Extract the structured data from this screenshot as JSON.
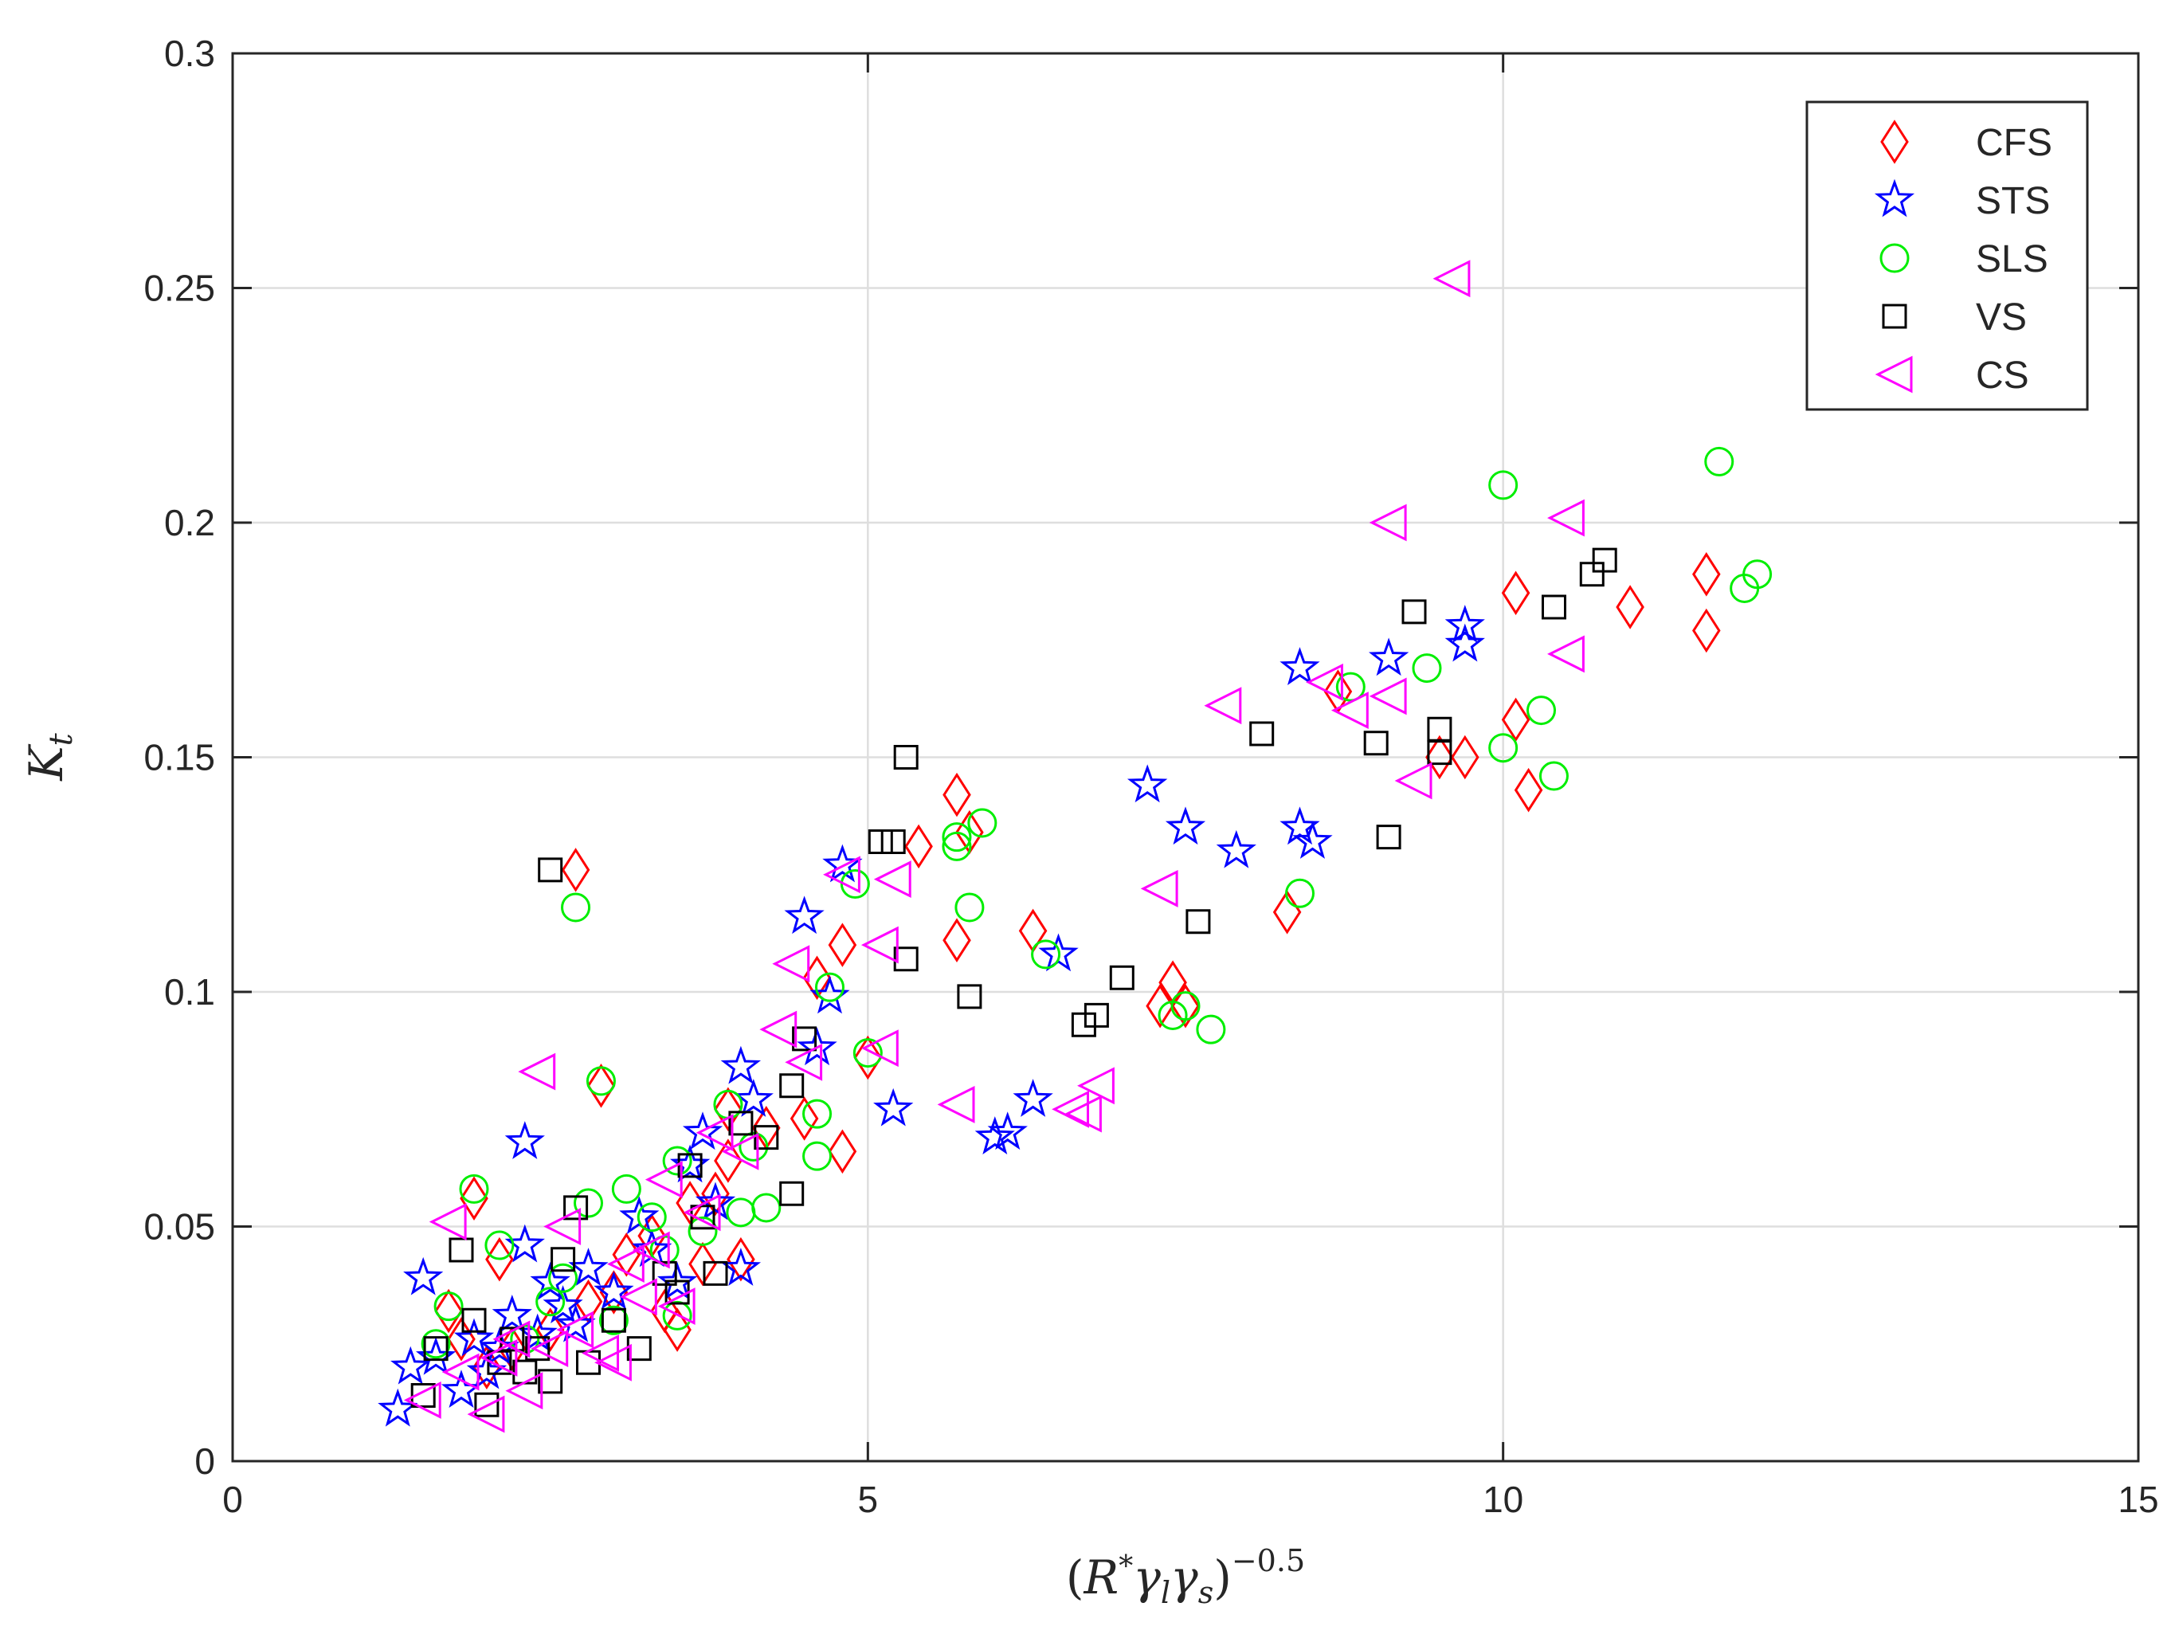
{
  "chart_data": {
    "type": "scatter",
    "xlabel": "(R*γlγs)−0.5",
    "ylabel": "Kt",
    "xlim": [
      0,
      15
    ],
    "ylim": [
      0,
      0.3
    ],
    "x_ticks": [
      "0",
      "5",
      "10",
      "15"
    ],
    "y_ticks": [
      "0",
      "0.05",
      "0.1",
      "0.15",
      "0.2",
      "0.25",
      "0.3"
    ],
    "grid": true,
    "legend_position": "top-right",
    "series": [
      {
        "name": "CFS",
        "marker": "diamond",
        "color": "#ff0000",
        "points": [
          [
            2.7,
            0.126
          ],
          [
            2.9,
            0.08
          ],
          [
            1.9,
            0.056
          ],
          [
            2.1,
            0.043
          ],
          [
            1.7,
            0.032
          ],
          [
            1.8,
            0.026
          ],
          [
            2.0,
            0.02
          ],
          [
            2.2,
            0.024
          ],
          [
            2.5,
            0.028
          ],
          [
            2.8,
            0.034
          ],
          [
            3.0,
            0.036
          ],
          [
            3.1,
            0.044
          ],
          [
            3.3,
            0.048
          ],
          [
            3.4,
            0.032
          ],
          [
            3.5,
            0.028
          ],
          [
            3.6,
            0.055
          ],
          [
            3.7,
            0.042
          ],
          [
            3.8,
            0.057
          ],
          [
            3.9,
            0.064
          ],
          [
            3.9,
            0.075
          ],
          [
            4.0,
            0.043
          ],
          [
            4.2,
            0.071
          ],
          [
            4.5,
            0.073
          ],
          [
            4.6,
            0.103
          ],
          [
            4.8,
            0.066
          ],
          [
            4.8,
            0.11
          ],
          [
            5.0,
            0.086
          ],
          [
            5.4,
            0.131
          ],
          [
            5.7,
            0.142
          ],
          [
            5.7,
            0.111
          ],
          [
            5.8,
            0.134
          ],
          [
            6.3,
            0.113
          ],
          [
            7.3,
            0.097
          ],
          [
            7.4,
            0.102
          ],
          [
            7.5,
            0.097
          ],
          [
            8.3,
            0.117
          ],
          [
            8.7,
            0.164
          ],
          [
            9.5,
            0.15
          ],
          [
            9.7,
            0.15
          ],
          [
            10.1,
            0.185
          ],
          [
            10.1,
            0.158
          ],
          [
            10.2,
            0.143
          ],
          [
            11.0,
            0.182
          ],
          [
            11.6,
            0.177
          ],
          [
            11.6,
            0.189
          ]
        ]
      },
      {
        "name": "STS",
        "marker": "star",
        "color": "#0000ff",
        "points": [
          [
            1.3,
            0.011
          ],
          [
            1.4,
            0.02
          ],
          [
            1.5,
            0.039
          ],
          [
            1.6,
            0.022
          ],
          [
            1.8,
            0.015
          ],
          [
            1.9,
            0.026
          ],
          [
            2.0,
            0.019
          ],
          [
            2.1,
            0.024
          ],
          [
            2.2,
            0.031
          ],
          [
            2.3,
            0.068
          ],
          [
            2.3,
            0.046
          ],
          [
            2.4,
            0.027
          ],
          [
            2.5,
            0.038
          ],
          [
            2.6,
            0.033
          ],
          [
            2.7,
            0.029
          ],
          [
            2.8,
            0.041
          ],
          [
            3.0,
            0.036
          ],
          [
            3.2,
            0.052
          ],
          [
            3.3,
            0.045
          ],
          [
            3.5,
            0.038
          ],
          [
            3.6,
            0.063
          ],
          [
            3.7,
            0.07
          ],
          [
            3.8,
            0.055
          ],
          [
            4.0,
            0.084
          ],
          [
            4.0,
            0.041
          ],
          [
            4.1,
            0.077
          ],
          [
            4.5,
            0.116
          ],
          [
            4.6,
            0.088
          ],
          [
            4.7,
            0.099
          ],
          [
            4.8,
            0.127
          ],
          [
            5.2,
            0.075
          ],
          [
            6.0,
            0.069
          ],
          [
            6.1,
            0.07
          ],
          [
            6.3,
            0.077
          ],
          [
            6.5,
            0.108
          ],
          [
            7.2,
            0.144
          ],
          [
            7.5,
            0.135
          ],
          [
            7.9,
            0.13
          ],
          [
            8.4,
            0.169
          ],
          [
            8.4,
            0.135
          ],
          [
            8.5,
            0.132
          ],
          [
            9.1,
            0.171
          ],
          [
            9.7,
            0.178
          ],
          [
            9.7,
            0.174
          ]
        ]
      },
      {
        "name": "SLS",
        "marker": "circle",
        "color": "#00ee00",
        "points": [
          [
            1.6,
            0.025
          ],
          [
            1.7,
            0.033
          ],
          [
            1.9,
            0.058
          ],
          [
            2.1,
            0.046
          ],
          [
            2.3,
            0.026
          ],
          [
            2.5,
            0.034
          ],
          [
            2.6,
            0.039
          ],
          [
            2.7,
            0.118
          ],
          [
            2.8,
            0.055
          ],
          [
            2.9,
            0.081
          ],
          [
            3.0,
            0.03
          ],
          [
            3.1,
            0.058
          ],
          [
            3.3,
            0.052
          ],
          [
            3.4,
            0.045
          ],
          [
            3.5,
            0.064
          ],
          [
            3.5,
            0.031
          ],
          [
            3.7,
            0.049
          ],
          [
            3.9,
            0.076
          ],
          [
            4.0,
            0.053
          ],
          [
            4.1,
            0.067
          ],
          [
            4.2,
            0.054
          ],
          [
            4.6,
            0.074
          ],
          [
            4.6,
            0.065
          ],
          [
            4.7,
            0.101
          ],
          [
            4.9,
            0.123
          ],
          [
            5.0,
            0.087
          ],
          [
            5.7,
            0.131
          ],
          [
            5.7,
            0.133
          ],
          [
            5.8,
            0.118
          ],
          [
            5.9,
            0.136
          ],
          [
            6.4,
            0.108
          ],
          [
            7.4,
            0.095
          ],
          [
            7.5,
            0.097
          ],
          [
            7.7,
            0.092
          ],
          [
            8.4,
            0.121
          ],
          [
            8.8,
            0.165
          ],
          [
            9.4,
            0.169
          ],
          [
            10.0,
            0.208
          ],
          [
            10.0,
            0.152
          ],
          [
            10.3,
            0.16
          ],
          [
            10.4,
            0.146
          ],
          [
            11.7,
            0.213
          ],
          [
            11.9,
            0.186
          ],
          [
            12.0,
            0.189
          ]
        ]
      },
      {
        "name": "VS",
        "marker": "square",
        "color": "#000000",
        "points": [
          [
            1.5,
            0.014
          ],
          [
            1.6,
            0.024
          ],
          [
            1.8,
            0.045
          ],
          [
            1.9,
            0.03
          ],
          [
            2.0,
            0.012
          ],
          [
            2.1,
            0.021
          ],
          [
            2.2,
            0.026
          ],
          [
            2.3,
            0.019
          ],
          [
            2.4,
            0.024
          ],
          [
            2.5,
            0.017
          ],
          [
            2.5,
            0.126
          ],
          [
            2.6,
            0.043
          ],
          [
            2.7,
            0.054
          ],
          [
            2.8,
            0.021
          ],
          [
            3.0,
            0.03
          ],
          [
            3.2,
            0.024
          ],
          [
            3.4,
            0.04
          ],
          [
            3.5,
            0.036
          ],
          [
            3.6,
            0.063
          ],
          [
            3.7,
            0.052
          ],
          [
            3.8,
            0.04
          ],
          [
            4.0,
            0.072
          ],
          [
            4.2,
            0.069
          ],
          [
            4.4,
            0.08
          ],
          [
            4.4,
            0.057
          ],
          [
            4.5,
            0.09
          ],
          [
            5.1,
            0.132
          ],
          [
            5.2,
            0.132
          ],
          [
            5.3,
            0.107
          ],
          [
            5.3,
            0.15
          ],
          [
            5.8,
            0.099
          ],
          [
            6.7,
            0.093
          ],
          [
            6.8,
            0.095
          ],
          [
            7.0,
            0.103
          ],
          [
            7.6,
            0.115
          ],
          [
            8.1,
            0.155
          ],
          [
            9.0,
            0.153
          ],
          [
            9.1,
            0.133
          ],
          [
            9.3,
            0.181
          ],
          [
            9.5,
            0.156
          ],
          [
            9.5,
            0.151
          ],
          [
            10.4,
            0.182
          ],
          [
            10.7,
            0.189
          ],
          [
            10.8,
            0.192
          ]
        ]
      },
      {
        "name": "CS",
        "marker": "triangle-left",
        "color": "#ff00ff",
        "points": [
          [
            1.5,
            0.013
          ],
          [
            1.7,
            0.051
          ],
          [
            1.8,
            0.019
          ],
          [
            2.0,
            0.01
          ],
          [
            2.1,
            0.022
          ],
          [
            2.2,
            0.026
          ],
          [
            2.3,
            0.015
          ],
          [
            2.4,
            0.083
          ],
          [
            2.5,
            0.024
          ],
          [
            2.6,
            0.05
          ],
          [
            2.7,
            0.028
          ],
          [
            2.9,
            0.023
          ],
          [
            3.0,
            0.021
          ],
          [
            3.1,
            0.042
          ],
          [
            3.2,
            0.035
          ],
          [
            3.3,
            0.045
          ],
          [
            3.4,
            0.06
          ],
          [
            3.5,
            0.033
          ],
          [
            3.7,
            0.053
          ],
          [
            3.8,
            0.07
          ],
          [
            4.0,
            0.066
          ],
          [
            4.3,
            0.092
          ],
          [
            4.4,
            0.106
          ],
          [
            4.5,
            0.085
          ],
          [
            4.8,
            0.125
          ],
          [
            5.1,
            0.088
          ],
          [
            5.1,
            0.11
          ],
          [
            5.2,
            0.124
          ],
          [
            5.7,
            0.076
          ],
          [
            6.6,
            0.075
          ],
          [
            6.7,
            0.074
          ],
          [
            6.8,
            0.08
          ],
          [
            7.3,
            0.122
          ],
          [
            7.8,
            0.161
          ],
          [
            8.6,
            0.166
          ],
          [
            8.8,
            0.16
          ],
          [
            9.1,
            0.163
          ],
          [
            9.1,
            0.2
          ],
          [
            9.3,
            0.145
          ],
          [
            9.6,
            0.252
          ],
          [
            10.5,
            0.201
          ],
          [
            10.5,
            0.172
          ]
        ]
      }
    ]
  }
}
